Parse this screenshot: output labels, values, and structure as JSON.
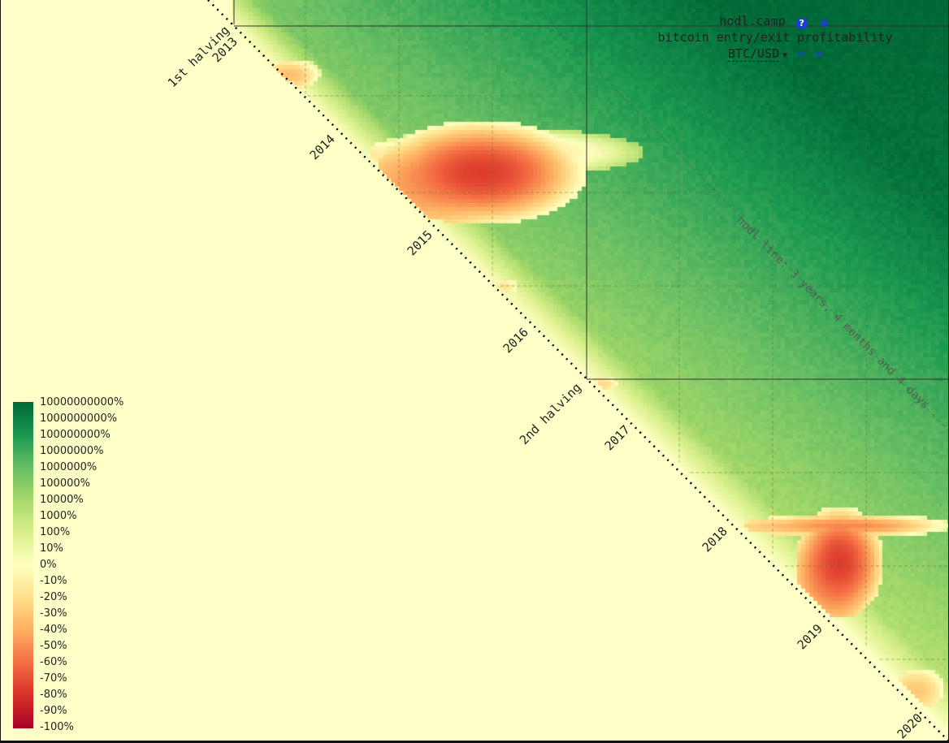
{
  "header": {
    "site": "hodl.camp",
    "subtitle": "bitcoin entry/exit profitability",
    "currency": "BTC/USD",
    "help_icon": "question-circle-icon",
    "hide_icon": "eye-slash-icon",
    "zoom_out_icon": "zoom-out-icon",
    "zoom_in_icon": "zoom-in-icon"
  },
  "chart_data": {
    "type": "heatmap",
    "x_label": "",
    "y_label": "",
    "diagonal_labels": [
      "1st halving",
      "2013",
      "2014",
      "2015",
      "2016",
      "2nd halving",
      "2017",
      "2018",
      "2019",
      "2020"
    ],
    "hodl_line_label": "hodl line: 3 years, 4 months and 4 days",
    "legend": {
      "labels": [
        "10000000000%",
        "1000000000%",
        "100000000%",
        "10000000%",
        "1000000%",
        "100000%",
        "10000%",
        "1000%",
        "100%",
        "10%",
        "0%",
        "-10%",
        "-20%",
        "-30%",
        "-40%",
        "-50%",
        "-60%",
        "-70%",
        "-80%",
        "-90%",
        "-100%"
      ],
      "colors": [
        "#006837",
        "#1a9850",
        "#66bd63",
        "#a6d96a",
        "#d9ef8b",
        "#ffffbf",
        "#fee08b",
        "#fdae61",
        "#f46d43",
        "#d73027",
        "#a50026"
      ]
    },
    "loss_regions": [
      {
        "entry": "2013 Q4",
        "exit": "2014-2015",
        "min_profit": "-80%"
      },
      {
        "entry": "2017 Q4",
        "exit": "2018-2019",
        "min_profit": "-80%"
      }
    ]
  }
}
